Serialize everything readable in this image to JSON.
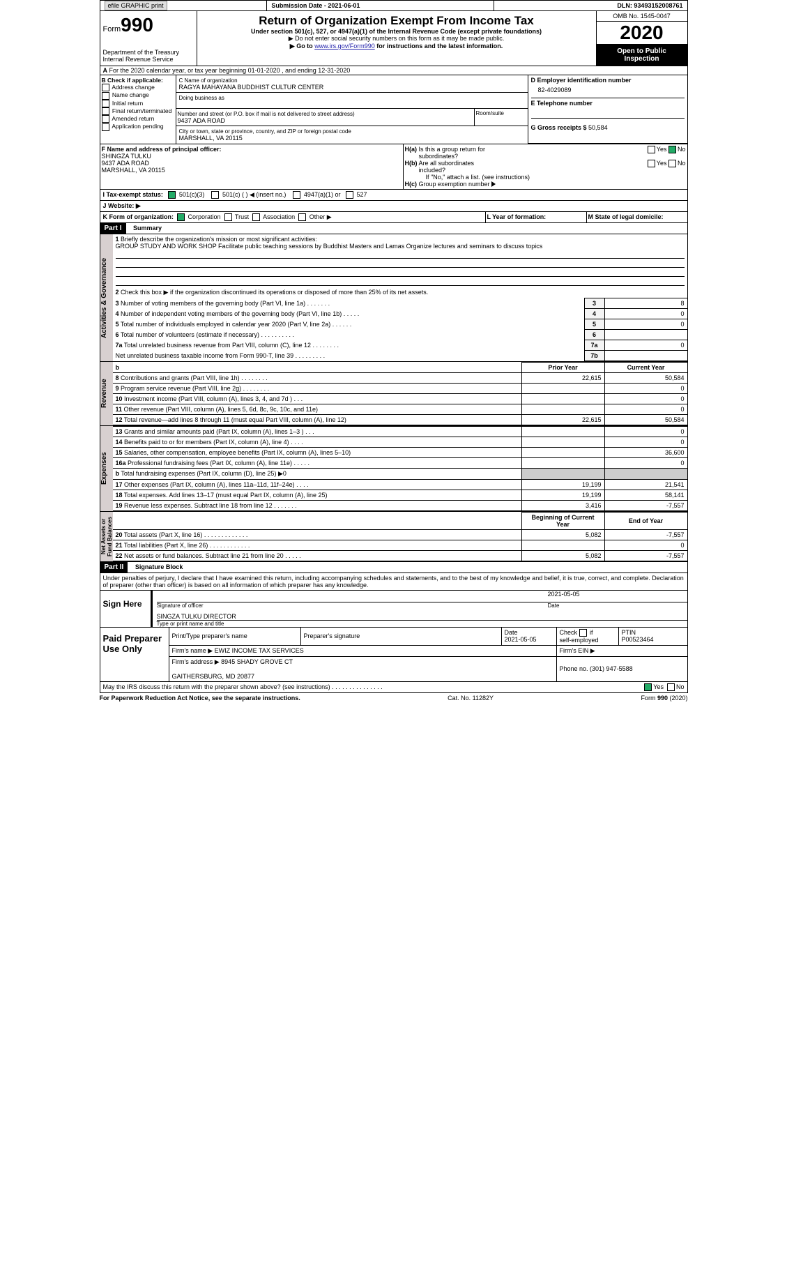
{
  "topbar": {
    "efile": "efile GRAPHIC print",
    "subdate_label": "Submission Date - ",
    "subdate": "2021-06-01",
    "dln_label": "DLN: ",
    "dln": "93493152008761"
  },
  "header": {
    "form_label": "Form",
    "form_num": "990",
    "dept": "Department of the Treasury\nInternal Revenue Service",
    "title": "Return of Organization Exempt From Income Tax",
    "subtitle": "Under section 501(c), 527, or 4947(a)(1) of the Internal Revenue Code (except private foundations)",
    "note1": "▶ Do not enter social security numbers on this form as it may be made public.",
    "note2_pre": "▶ Go to ",
    "note2_link": "www.irs.gov/Form990",
    "note2_post": " for instructions and the latest information.",
    "omb": "OMB No. 1545-0047",
    "year": "2020",
    "otp": "Open to Public\nInspection"
  },
  "sectionA": {
    "period": "For the 2020 calendar year, or tax year beginning 01-01-2020    , and ending 12-31-2020",
    "b_label": "B Check if applicable:",
    "b_items": [
      "Address change",
      "Name change",
      "Initial return",
      "Final return/terminated",
      "Amended return",
      "Application pending"
    ],
    "c_label": "C Name of organization",
    "c_name": "RAGYA MAHAYANA BUDDHIST CULTUR CENTER",
    "dba": "Doing business as",
    "addr_label": "Number and street (or P.O. box if mail is not delivered to street address)",
    "room": "Room/suite",
    "addr": "9437 ADA ROAD",
    "city_label": "City or town, state or province, country, and ZIP or foreign postal code",
    "city": "MARSHALL, VA  20115",
    "d_label": "D Employer identification number",
    "d_val": "82-4029089",
    "e_label": "E Telephone number",
    "g_label": "G Gross receipts $ ",
    "g_val": "50,584",
    "f_label": "F  Name and address of principal officer:",
    "f_name": "SHINGZA TULKU",
    "f_addr": "9437 ADA ROAD\nMARSHALL, VA  20115",
    "ha": "H(a)  Is this a group return for subordinates?",
    "hb": "H(b)  Are all subordinates included?",
    "hc_note": "If \"No,\" attach a list. (see instructions)",
    "hc": "H(c)  Group exemption number ▶",
    "yes": "Yes",
    "no": "No"
  },
  "statusrow": {
    "i": "I   Tax-exempt status:",
    "opts": [
      "501(c)(3)",
      "501(c) (  ) ◀ (insert no.)",
      "4947(a)(1) or",
      "527"
    ],
    "j": "J   Website: ▶"
  },
  "krow": {
    "k": "K Form of organization:",
    "opts": [
      "Corporation",
      "Trust",
      "Association",
      "Other ▶"
    ],
    "l": "L Year of formation:",
    "m": "M State of legal domicile:"
  },
  "part1": {
    "label": "Part I",
    "title": "Summary",
    "side1": "Activities & Governance",
    "side2": "Revenue",
    "side3": "Expenses",
    "side4": "Net Assets or\nFund Balances",
    "q1": "Briefly describe the organization's mission or most significant activities:",
    "q1_text": "GROUP STUDY AND WORK SHOP Facilitate public teaching sessions by Buddhist Masters and Lamas Organize lectures and seminars to discuss topics",
    "q2": "Check this box ▶        if the organization discontinued its operations or disposed of more than 25% of its net assets.",
    "rows_gov": [
      {
        "n": "3",
        "t": "Number of voting members of the governing body (Part VI, line 1a)   .    .    .    .    .    .    .",
        "c": "3",
        "v": "8"
      },
      {
        "n": "4",
        "t": "Number of independent voting members of the governing body (Part VI, line 1b)    .    .    .    .    .",
        "c": "4",
        "v": "0"
      },
      {
        "n": "5",
        "t": "Total number of individuals employed in calendar year 2020 (Part V, line 2a)    .    .    .    .    .    .",
        "c": "5",
        "v": "0"
      },
      {
        "n": "6",
        "t": "Total number of volunteers (estimate if necessary)      .     .     .     .     .     .     .     .     .     .",
        "c": "6",
        "v": ""
      },
      {
        "n": "7a",
        "t": "Total unrelated business revenue from Part VIII, column (C), line 12   .    .    .    .    .    .    .    .",
        "c": "7a",
        "v": "0"
      },
      {
        "n": "",
        "t": "Net unrelated business taxable income from Form 990-T, line 39    .    .    .    .    .    .    .    .    .",
        "c": "7b",
        "v": ""
      }
    ],
    "b": "b",
    "pycy": {
      "py": "Prior Year",
      "cy": "Current Year"
    },
    "rows_rev": [
      {
        "n": "8",
        "t": "Contributions and grants (Part VIII, line 1h)    .    .    .    .    .    .    .    .",
        "py": "22,615",
        "cy": "50,584"
      },
      {
        "n": "9",
        "t": "Program service revenue (Part VIII, line 2g)    .    .    .    .    .    .    .    .",
        "py": "",
        "cy": "0"
      },
      {
        "n": "10",
        "t": "Investment income (Part VIII, column (A), lines 3, 4, and 7d )    .    .    .",
        "py": "",
        "cy": "0"
      },
      {
        "n": "11",
        "t": "Other revenue (Part VIII, column (A), lines 5, 6d, 8c, 9c, 10c, and 11e)",
        "py": "",
        "cy": "0"
      },
      {
        "n": "12",
        "t": "Total revenue—add lines 8 through 11 (must equal Part VIII, column (A), line 12)",
        "py": "22,615",
        "cy": "50,584"
      }
    ],
    "rows_exp": [
      {
        "n": "13",
        "t": "Grants and similar amounts paid (Part IX, column (A), lines 1–3 )   .    .    .",
        "py": "",
        "cy": "0"
      },
      {
        "n": "14",
        "t": "Benefits paid to or for members (Part IX, column (A), line 4)    .    .    .    .",
        "py": "",
        "cy": "0"
      },
      {
        "n": "15",
        "t": "Salaries, other compensation, employee benefits (Part IX, column (A), lines 5–10)",
        "py": "",
        "cy": "36,600"
      },
      {
        "n": "16a",
        "t": "Professional fundraising fees (Part IX, column (A), line 11e)    .    .    .    .    .",
        "py": "",
        "cy": "0"
      },
      {
        "n": "b",
        "t": "Total fundraising expenses (Part IX, column (D), line 25) ▶0",
        "py": "shade",
        "cy": "shade"
      },
      {
        "n": "17",
        "t": "Other expenses (Part IX, column (A), lines 11a–11d, 11f–24e)    .    .    .    .",
        "py": "19,199",
        "cy": "21,541"
      },
      {
        "n": "18",
        "t": "Total expenses. Add lines 13–17 (must equal Part IX, column (A), line 25)",
        "py": "19,199",
        "cy": "58,141"
      },
      {
        "n": "19",
        "t": "Revenue less expenses. Subtract line 18 from line 12   .    .    .    .    .    .    .",
        "py": "3,416",
        "cy": "-7,557"
      }
    ],
    "begend": {
      "b": "Beginning of Current Year",
      "e": "End of Year"
    },
    "rows_net": [
      {
        "n": "20",
        "t": "Total assets (Part X, line 16)   .    .    .    .    .    .    .    .    .    .    .    .    .",
        "py": "5,082",
        "cy": "-7,557"
      },
      {
        "n": "21",
        "t": "Total liabilities (Part X, line 26)    .    .    .    .    .    .    .    .    .    .    .    .",
        "py": "",
        "cy": "0"
      },
      {
        "n": "22",
        "t": "Net assets or fund balances. Subtract line 21 from line 20    .    .    .    .    .",
        "py": "5,082",
        "cy": "-7,557"
      }
    ]
  },
  "part2": {
    "label": "Part II",
    "title": "Signature Block",
    "decl": "Under penalties of perjury, I declare that I have examined this return, including accompanying schedules and statements, and to the best of my knowledge and belief, it is true, correct, and complete. Declaration of preparer (other than officer) is based on all information of which preparer has any knowledge.",
    "sign": "Sign Here",
    "sig_officer": "Signature of officer",
    "sig_date": "Date",
    "sig_date_val": "2021-05-05",
    "name_title": "SINGZA TULKU  DIRECTOR",
    "type_name": "Type or print name and title",
    "paid": "Paid Preparer Use Only",
    "p_name": "Print/Type preparer's name",
    "p_sig": "Preparer's signature",
    "p_date": "Date\n2021-05-05",
    "p_check": "Check        if self-employed",
    "p_ptin": "PTIN\nP00523464",
    "firm_name_l": "Firm's name    ▶",
    "firm_name": "EWIZ INCOME TAX SERVICES",
    "firm_ein": "Firm's EIN ▶",
    "firm_addr_l": "Firm's address ▶",
    "firm_addr": "8945 SHADY GROVE CT\n\nGAITHERSBURG, MD  20877",
    "phone_l": "Phone no. ",
    "phone": "(301) 947-5588",
    "discuss": "May the IRS discuss this return with the preparer shown above? (see instructions)    .    .    .    .    .    .    .    .    .    .    .    .    .    .    ."
  },
  "footer": {
    "pra": "For Paperwork Reduction Act Notice, see the separate instructions.",
    "cat": "Cat. No. 11282Y",
    "form": "Form 990 (2020)"
  }
}
